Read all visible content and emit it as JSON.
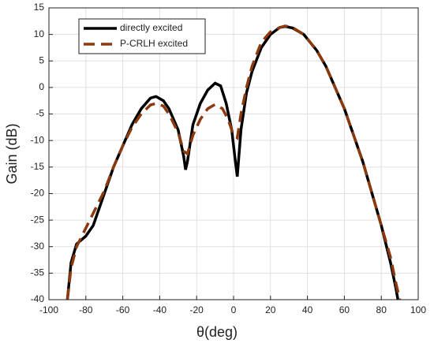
{
  "chart_data": {
    "type": "line",
    "xlabel": "θ(deg)",
    "ylabel": "Gain (dB)",
    "xlim": [
      -100,
      100
    ],
    "xticks": [
      -100,
      -80,
      -60,
      -40,
      -20,
      0,
      20,
      40,
      60,
      80,
      100
    ],
    "ylim": [
      -40,
      15
    ],
    "yticks": [
      -40,
      -35,
      -30,
      -25,
      -20,
      -15,
      -10,
      -5,
      0,
      5,
      10,
      15
    ],
    "grid": true,
    "legend": "upper left",
    "series": [
      {
        "name": "directly excited",
        "color": "#000000",
        "dash": "solid",
        "x": [
          -90,
          -88,
          -85,
          -80,
          -76,
          -70,
          -65,
          -60,
          -55,
          -50,
          -45,
          -42,
          -38,
          -35,
          -30,
          -27,
          -26,
          -25,
          -22,
          -18,
          -14,
          -10,
          -7,
          -4,
          -1,
          1,
          2,
          4,
          7,
          10,
          15,
          20,
          25,
          28,
          32,
          38,
          45,
          50,
          55,
          60,
          65,
          70,
          75,
          80,
          85,
          88,
          89
        ],
        "values": [
          -40,
          -33,
          -29.5,
          -28,
          -26,
          -20,
          -15,
          -11,
          -7,
          -4,
          -2,
          -1.7,
          -2.5,
          -4,
          -8,
          -13,
          -15.5,
          -14,
          -7,
          -3,
          -0.5,
          0.8,
          0.3,
          -3,
          -8,
          -14,
          -16.8,
          -8,
          -1,
          3,
          7.5,
          10,
          11.3,
          11.5,
          11.2,
          10,
          7,
          4,
          0,
          -4,
          -9,
          -14,
          -20,
          -26,
          -33,
          -38,
          -40
        ]
      },
      {
        "name": "P-CRLH excited",
        "color": "#8b3a10",
        "dash": "dashed",
        "x": [
          -90,
          -88,
          -85,
          -80,
          -75,
          -70,
          -65,
          -60,
          -55,
          -50,
          -45,
          -42,
          -38,
          -35,
          -30,
          -27,
          -25,
          -22,
          -18,
          -14,
          -10,
          -6,
          -3,
          0,
          2,
          4,
          7,
          10,
          15,
          20,
          25,
          28,
          32,
          38,
          45,
          50,
          55,
          60,
          65,
          70,
          75,
          80,
          85,
          88,
          90
        ],
        "values": [
          -40,
          -34,
          -30,
          -26.5,
          -23,
          -19.5,
          -15,
          -11,
          -7.5,
          -5,
          -3.3,
          -3,
          -3.5,
          -5,
          -8.5,
          -12,
          -12.5,
          -9,
          -6,
          -4,
          -3.2,
          -4,
          -6,
          -9,
          -9.5,
          -5,
          0,
          4,
          8.5,
          10.5,
          11.3,
          11.6,
          11.3,
          10,
          7,
          4,
          0,
          -4,
          -9,
          -14,
          -20,
          -26,
          -32,
          -37,
          -40
        ]
      }
    ]
  }
}
